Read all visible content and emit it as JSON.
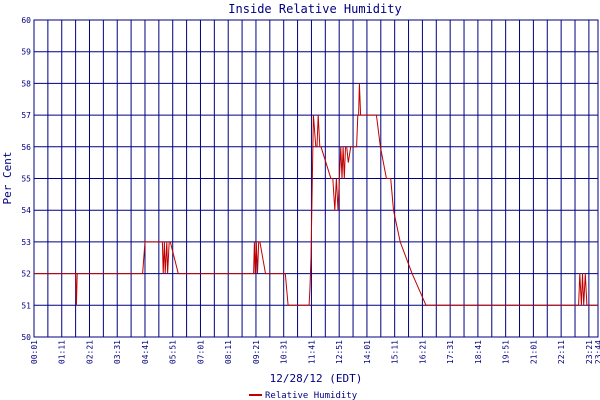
{
  "chart_data": {
    "type": "line",
    "title": "Inside Relative Humidity",
    "xlabel": "12/28/12 (EDT)",
    "ylabel": "Per Cent",
    "ylim": [
      50,
      60
    ],
    "yticks": [
      "50",
      "51",
      "52",
      "53",
      "54",
      "55",
      "56",
      "57",
      "58",
      "59",
      "60"
    ],
    "xlim": [
      "00:01",
      "23:44"
    ],
    "xticks": [
      "00:01",
      "01:11",
      "02:21",
      "03:31",
      "04:41",
      "05:51",
      "07:01",
      "08:11",
      "09:21",
      "10:31",
      "11:41",
      "12:51",
      "14:01",
      "15:11",
      "16:21",
      "17:31",
      "18:41",
      "19:51",
      "21:01",
      "22:11",
      "23:21",
      "23:44"
    ],
    "grid": true,
    "legend": "bottom-center",
    "colors": {
      "series": "#c00000",
      "grid": "#000080",
      "text": "#000080"
    },
    "series": [
      {
        "name": "Relative Humidity",
        "x": [
          "00:01",
          "01:46",
          "01:48",
          "01:50",
          "04:35",
          "04:41",
          "04:50",
          "05:25",
          "05:27",
          "05:30",
          "05:32",
          "05:36",
          "05:38",
          "05:42",
          "05:45",
          "06:05",
          "09:15",
          "09:17",
          "09:19",
          "09:22",
          "09:25",
          "09:28",
          "09:31",
          "09:45",
          "10:35",
          "10:42",
          "11:35",
          "11:37",
          "11:40",
          "11:46",
          "11:52",
          "11:55",
          "11:58",
          "12:02",
          "12:05",
          "12:30",
          "12:35",
          "12:40",
          "12:44",
          "12:48",
          "12:55",
          "12:58",
          "13:01",
          "13:04",
          "13:07",
          "13:10",
          "13:14",
          "13:20",
          "13:35",
          "13:38",
          "13:40",
          "13:42",
          "13:45",
          "13:55",
          "14:25",
          "14:35",
          "14:50",
          "15:01",
          "15:08",
          "15:25",
          "15:55",
          "16:30",
          "22:55",
          "22:58",
          "23:02",
          "23:05",
          "23:08",
          "23:12",
          "23:16",
          "23:20",
          "23:44"
        ],
        "values": [
          52,
          52,
          51,
          52,
          52,
          53,
          53,
          53,
          52,
          53,
          52,
          53,
          52,
          53,
          53,
          52,
          52,
          53,
          52,
          53,
          52,
          53,
          53,
          52,
          52,
          51,
          51,
          51.5,
          52.5,
          57,
          56,
          56,
          57,
          56,
          56,
          55,
          55,
          54,
          55,
          54,
          56,
          55,
          56,
          55,
          56,
          56,
          55.5,
          56,
          56,
          57,
          57,
          58,
          57,
          57,
          57,
          56,
          55,
          55,
          54,
          53,
          52,
          51,
          51,
          52,
          51,
          52,
          51,
          52,
          51,
          51,
          51
        ]
      }
    ]
  }
}
